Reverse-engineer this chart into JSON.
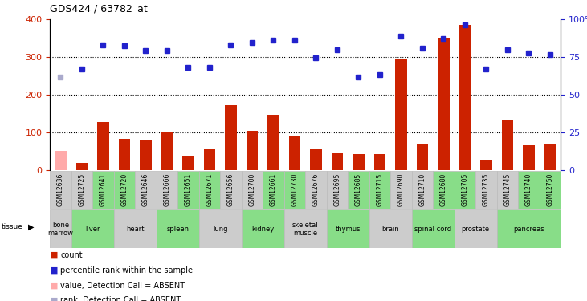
{
  "title": "GDS424 / 63782_at",
  "samples": [
    "GSM12636",
    "GSM12725",
    "GSM12641",
    "GSM12720",
    "GSM12646",
    "GSM12666",
    "GSM12651",
    "GSM12671",
    "GSM12656",
    "GSM12700",
    "GSM12661",
    "GSM12730",
    "GSM12676",
    "GSM12695",
    "GSM12685",
    "GSM12715",
    "GSM12690",
    "GSM12710",
    "GSM12680",
    "GSM12705",
    "GSM12735",
    "GSM12745",
    "GSM12740",
    "GSM12750"
  ],
  "tissue_spans": [
    {
      "tissue": "bone\nmarrow",
      "start": 0,
      "end": 1,
      "color": "#cccccc"
    },
    {
      "tissue": "liver",
      "start": 1,
      "end": 3,
      "color": "#88dd88"
    },
    {
      "tissue": "heart",
      "start": 3,
      "end": 5,
      "color": "#cccccc"
    },
    {
      "tissue": "spleen",
      "start": 5,
      "end": 7,
      "color": "#88dd88"
    },
    {
      "tissue": "lung",
      "start": 7,
      "end": 9,
      "color": "#cccccc"
    },
    {
      "tissue": "kidney",
      "start": 9,
      "end": 11,
      "color": "#88dd88"
    },
    {
      "tissue": "skeletal\nmuscle",
      "start": 11,
      "end": 13,
      "color": "#cccccc"
    },
    {
      "tissue": "thymus",
      "start": 13,
      "end": 15,
      "color": "#88dd88"
    },
    {
      "tissue": "brain",
      "start": 15,
      "end": 17,
      "color": "#cccccc"
    },
    {
      "tissue": "spinal cord",
      "start": 17,
      "end": 19,
      "color": "#88dd88"
    },
    {
      "tissue": "prostate",
      "start": 19,
      "end": 21,
      "color": "#cccccc"
    },
    {
      "tissue": "pancreas",
      "start": 21,
      "end": 24,
      "color": "#88dd88"
    }
  ],
  "bar_values": [
    50,
    18,
    128,
    82,
    78,
    100,
    38,
    55,
    172,
    105,
    148,
    92,
    55,
    45,
    42,
    42,
    297,
    70,
    352,
    385,
    28,
    135,
    65,
    68
  ],
  "bar_absent": [
    true,
    false,
    false,
    false,
    false,
    false,
    false,
    false,
    false,
    false,
    false,
    false,
    false,
    false,
    false,
    false,
    false,
    false,
    false,
    false,
    false,
    false,
    false,
    false
  ],
  "rank_values": [
    248,
    268,
    332,
    330,
    318,
    318,
    272,
    272,
    333,
    338,
    345,
    345,
    298,
    320,
    248,
    253,
    355,
    325,
    350,
    385,
    268,
    320,
    312,
    308
  ],
  "rank_absent": [
    true,
    false,
    false,
    false,
    false,
    false,
    false,
    false,
    false,
    false,
    false,
    false,
    false,
    false,
    false,
    false,
    false,
    false,
    false,
    false,
    false,
    false,
    false,
    false
  ],
  "sample_bg_colors": [
    "#cccccc",
    "#cccccc",
    "#88dd88",
    "#88dd88",
    "#cccccc",
    "#cccccc",
    "#88dd88",
    "#88dd88",
    "#cccccc",
    "#cccccc",
    "#88dd88",
    "#88dd88",
    "#cccccc",
    "#cccccc",
    "#88dd88",
    "#88dd88",
    "#cccccc",
    "#cccccc",
    "#88dd88",
    "#88dd88",
    "#cccccc",
    "#cccccc",
    "#88dd88",
    "#88dd88"
  ],
  "ylim_left": [
    0,
    400
  ],
  "yticks_left": [
    0,
    100,
    200,
    300,
    400
  ],
  "yticks_right": [
    0,
    25,
    50,
    75,
    100
  ],
  "bar_color": "#cc2200",
  "bar_absent_color": "#ffaaaa",
  "rank_color": "#2222cc",
  "rank_absent_color": "#aaaacc",
  "bg_color": "#ffffff",
  "legend_items": [
    {
      "color": "#cc2200",
      "label": "count"
    },
    {
      "color": "#2222cc",
      "label": "percentile rank within the sample"
    },
    {
      "color": "#ffaaaa",
      "label": "value, Detection Call = ABSENT"
    },
    {
      "color": "#aaaacc",
      "label": "rank, Detection Call = ABSENT"
    }
  ]
}
